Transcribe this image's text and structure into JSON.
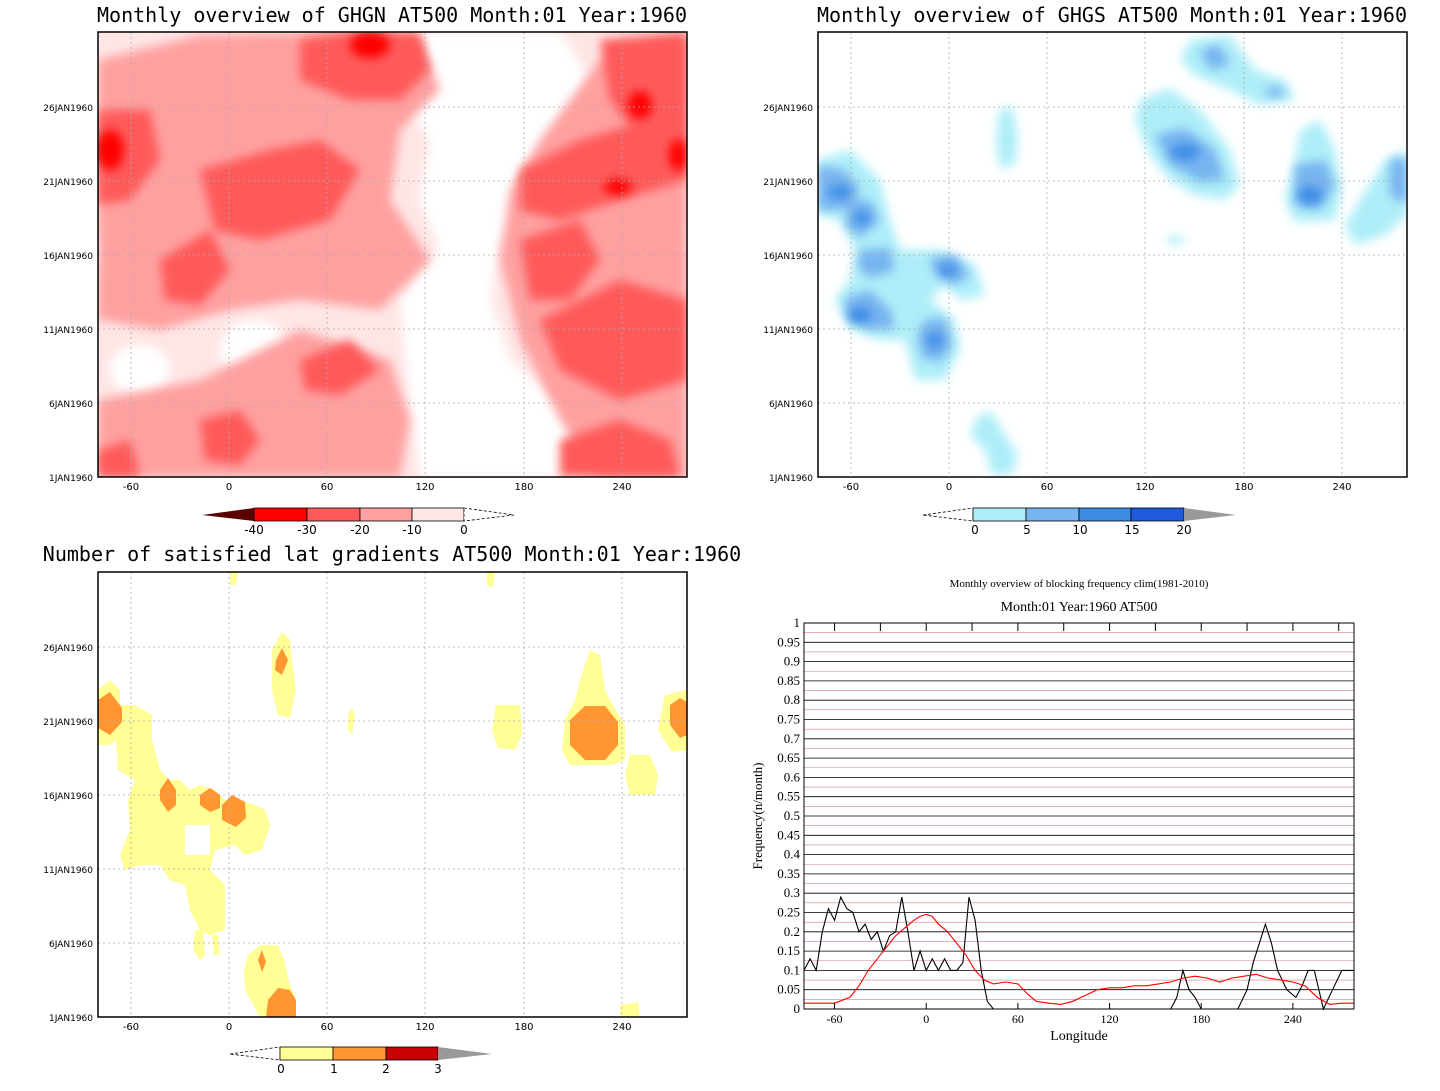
{
  "panels": {
    "ghgn": {
      "title": "Monthly overview of GHGN AT500 Month:01 Year:1960",
      "colorbar": {
        "labels": [
          "-40",
          "-30",
          "-20",
          "-10",
          "0"
        ],
        "colors": [
          "#5a0000",
          "#ff0000",
          "#ff5a5a",
          "#ffa0a0",
          "#ffe6e6"
        ]
      },
      "fill_levels": [
        "#ffe6e6",
        "#ffa0a0",
        "#ff5a5a",
        "#ff0000"
      ]
    },
    "ghgs": {
      "title": "Monthly overview of GHGS AT500 Month:01 Year:1960",
      "colorbar": {
        "labels": [
          "0",
          "5",
          "10",
          "15",
          "20"
        ],
        "colors": [
          "#aeeef8",
          "#78b4f0",
          "#3c8ce6",
          "#1e5adc",
          "#999999"
        ]
      },
      "fill_levels": [
        "#aeeef8",
        "#78b4f0",
        "#3c8ce6"
      ]
    },
    "sat": {
      "title": "Number of satisfied lat gradients AT500 Month:01 Year:1960",
      "colorbar": {
        "labels": [
          "0",
          "1",
          "2",
          "3"
        ],
        "colors": [
          "#ffff96",
          "#ff9632",
          "#c80000",
          "#999999"
        ]
      },
      "fill_levels": [
        "#ffff96",
        "#ff9632"
      ]
    }
  },
  "map_axes": {
    "x_ticks": [
      "-60",
      "0",
      "60",
      "120",
      "180",
      "240"
    ],
    "y_ticks": [
      "1JAN1960",
      "6JAN1960",
      "11JAN1960",
      "16JAN1960",
      "21JAN1960",
      "26JAN1960"
    ]
  },
  "chart_data": [
    {
      "type": "contour",
      "title": "Monthly overview of GHGN AT500 Month:01 Year:1960",
      "x_ticks": [
        -60,
        0,
        60,
        120,
        180,
        240
      ],
      "y_ticks": [
        "1JAN1960",
        "6JAN1960",
        "11JAN1960",
        "16JAN1960",
        "21JAN1960",
        "26JAN1960"
      ],
      "xlim": [
        -80,
        280
      ],
      "levels": [
        -40,
        -30,
        -20,
        -10,
        0
      ]
    },
    {
      "type": "contour",
      "title": "Monthly overview of GHGS AT500 Month:01 Year:1960",
      "x_ticks": [
        -60,
        0,
        60,
        120,
        180,
        240
      ],
      "y_ticks": [
        "1JAN1960",
        "6JAN1960",
        "11JAN1960",
        "16JAN1960",
        "21JAN1960",
        "26JAN1960"
      ],
      "xlim": [
        -80,
        280
      ],
      "levels": [
        0,
        5,
        10,
        15,
        20
      ]
    },
    {
      "type": "contour",
      "title": "Number of satisfied lat gradients AT500 Month:01 Year:1960",
      "x_ticks": [
        -60,
        0,
        60,
        120,
        180,
        240
      ],
      "y_ticks": [
        "1JAN1960",
        "6JAN1960",
        "11JAN1960",
        "16JAN1960",
        "21JAN1960",
        "26JAN1960"
      ],
      "xlim": [
        -80,
        280
      ],
      "levels": [
        0,
        1,
        2,
        3
      ]
    },
    {
      "type": "line",
      "title": "Monthly overview of blocking frequency clim(1981-2010)",
      "subtitle": "Month:01 Year:1960  AT500",
      "xlabel": "Longitude",
      "ylabel": "Frequency(n/month)",
      "xlim": [
        -80,
        280
      ],
      "ylim": [
        0,
        1
      ],
      "x_ticks": [
        "-60",
        "0",
        "60",
        "120",
        "180",
        "240"
      ],
      "y_ticks": [
        "0",
        "0.05",
        "0.1",
        "0.15",
        "0.2",
        "0.25",
        "0.3",
        "0.35",
        "0.4",
        "0.45",
        "0.5",
        "0.55",
        "0.6",
        "0.65",
        "0.7",
        "0.75",
        "0.8",
        "0.85",
        "0.9",
        "0.95",
        "1"
      ],
      "series": [
        {
          "color": "#000000",
          "x": [
            -80,
            -76,
            -72,
            -68,
            -64,
            -60,
            -56,
            -52,
            -48,
            -44,
            -40,
            -36,
            -32,
            -28,
            -24,
            -20,
            -16,
            -12,
            -8,
            -4,
            0,
            4,
            8,
            12,
            16,
            20,
            24,
            28,
            32,
            36,
            40,
            44,
            48,
            52,
            60,
            70,
            80,
            100,
            130,
            150,
            160,
            164,
            168,
            172,
            176,
            180,
            186,
            192,
            198,
            204,
            210,
            214,
            218,
            222,
            226,
            230,
            236,
            242,
            246,
            250,
            254,
            260,
            266,
            272,
            280
          ],
          "y": [
            0.1,
            0.13,
            0.1,
            0.2,
            0.26,
            0.23,
            0.29,
            0.26,
            0.25,
            0.2,
            0.22,
            0.18,
            0.2,
            0.15,
            0.19,
            0.2,
            0.29,
            0.2,
            0.1,
            0.15,
            0.1,
            0.13,
            0.1,
            0.13,
            0.1,
            0.1,
            0.12,
            0.29,
            0.23,
            0.1,
            0.02,
            0,
            0,
            0,
            0,
            0,
            0,
            0,
            0,
            0,
            0,
            0.03,
            0.1,
            0.05,
            0.03,
            0,
            0,
            0,
            0,
            0,
            0.05,
            0.12,
            0.17,
            0.22,
            0.17,
            0.1,
            0.05,
            0.03,
            0.06,
            0.1,
            0.1,
            0,
            0.05,
            0.1,
            0.1
          ]
        },
        {
          "color": "#ff0000",
          "x": [
            -80,
            -70,
            -60,
            -50,
            -44,
            -38,
            -32,
            -26,
            -20,
            -14,
            -8,
            -4,
            0,
            4,
            8,
            14,
            20,
            26,
            32,
            38,
            44,
            52,
            60,
            66,
            72,
            80,
            88,
            96,
            104,
            112,
            120,
            128,
            136,
            144,
            152,
            160,
            168,
            176,
            184,
            192,
            200,
            208,
            216,
            224,
            232,
            240,
            248,
            256,
            264,
            272,
            280
          ],
          "y": [
            0.015,
            0.015,
            0.015,
            0.03,
            0.06,
            0.1,
            0.13,
            0.16,
            0.19,
            0.21,
            0.23,
            0.24,
            0.245,
            0.24,
            0.22,
            0.2,
            0.17,
            0.14,
            0.1,
            0.075,
            0.065,
            0.07,
            0.065,
            0.04,
            0.02,
            0.015,
            0.012,
            0.02,
            0.035,
            0.05,
            0.055,
            0.055,
            0.06,
            0.06,
            0.065,
            0.07,
            0.08,
            0.085,
            0.08,
            0.07,
            0.08,
            0.085,
            0.09,
            0.08,
            0.075,
            0.07,
            0.06,
            0.03,
            0.012,
            0.015,
            0.015
          ]
        }
      ]
    }
  ]
}
